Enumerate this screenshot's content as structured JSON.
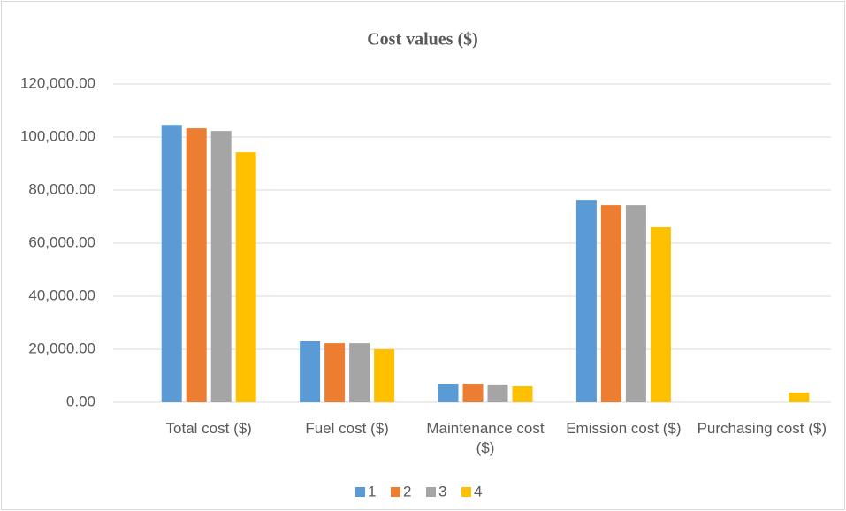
{
  "chart_data": {
    "type": "bar",
    "title": "Cost values ($)",
    "categories": [
      "Total cost ($)",
      "Fuel cost ($)",
      "Maintenance cost ($)",
      "Emission cost ($)",
      "Purchasing cost ($)"
    ],
    "series": [
      {
        "name": "1",
        "color": "#5b9bd5",
        "values": [
          104600,
          23000,
          7000,
          76300,
          0
        ]
      },
      {
        "name": "2",
        "color": "#ed7d31",
        "values": [
          103300,
          22300,
          7000,
          74300,
          0
        ]
      },
      {
        "name": "3",
        "color": "#a5a5a5",
        "values": [
          102300,
          22300,
          6700,
          74300,
          0
        ]
      },
      {
        "name": "4",
        "color": "#ffc000",
        "values": [
          94300,
          20000,
          6000,
          66000,
          3700
        ]
      }
    ],
    "ylim": [
      0,
      120000
    ],
    "yticks": [
      {
        "value": 0,
        "label": "0.00"
      },
      {
        "value": 20000,
        "label": "20,000.00"
      },
      {
        "value": 40000,
        "label": "40,000.00"
      },
      {
        "value": 60000,
        "label": "60,000.00"
      },
      {
        "value": 80000,
        "label": "80,000.00"
      },
      {
        "value": 100000,
        "label": "100,000.00"
      },
      {
        "value": 120000,
        "label": "120,000.00"
      }
    ],
    "grid": true,
    "legend": "bottom"
  }
}
